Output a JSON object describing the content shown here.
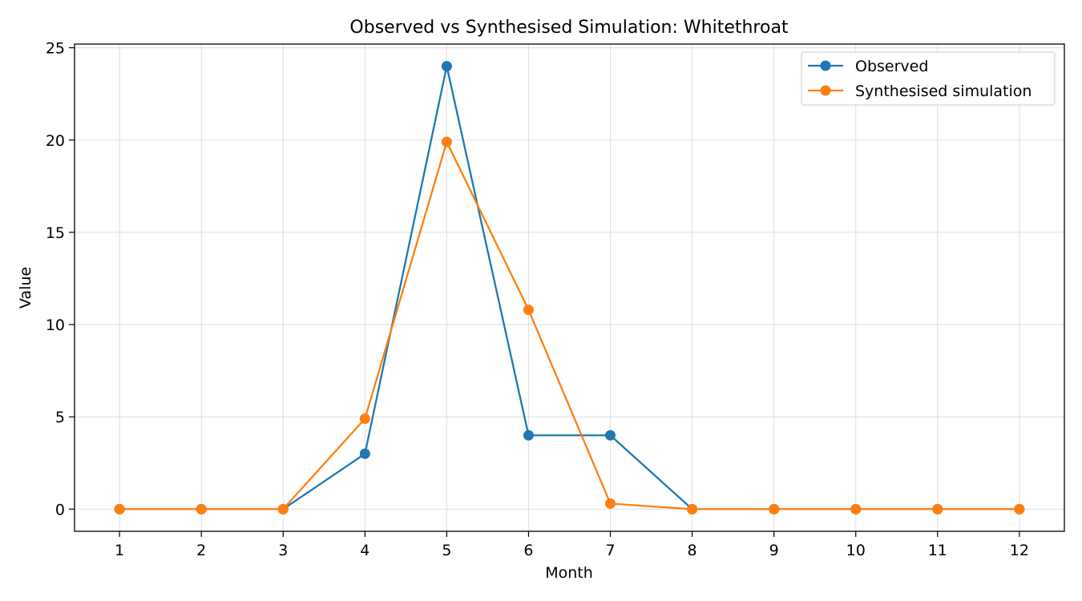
{
  "chart_data": {
    "type": "line",
    "title": "Observed vs Synthesised Simulation: Whitethroat",
    "xlabel": "Month",
    "ylabel": "Value",
    "x": [
      1,
      2,
      3,
      4,
      5,
      6,
      7,
      8,
      9,
      10,
      11,
      12
    ],
    "x_tick_labels": [
      "1",
      "2",
      "3",
      "4",
      "5",
      "6",
      "7",
      "8",
      "9",
      "10",
      "11",
      "12"
    ],
    "xlim": [
      0.45,
      12.55
    ],
    "ylim": [
      -1.2,
      25.2
    ],
    "y_ticks": [
      0,
      5,
      10,
      15,
      20,
      25
    ],
    "y_tick_labels": [
      "0",
      "5",
      "10",
      "15",
      "20",
      "25"
    ],
    "grid": true,
    "legend_position": "top-right",
    "series": [
      {
        "name": "Observed",
        "color": "#1f77b4",
        "marker": "circle",
        "values": [
          0,
          0,
          0,
          3,
          24,
          4,
          4,
          0,
          0,
          0,
          0,
          0
        ]
      },
      {
        "name": "Synthesised simulation",
        "color": "#ff7f0e",
        "marker": "circle",
        "values": [
          0,
          0,
          0,
          4.9,
          19.9,
          10.8,
          0.3,
          0,
          0,
          0,
          0,
          0
        ]
      }
    ]
  }
}
